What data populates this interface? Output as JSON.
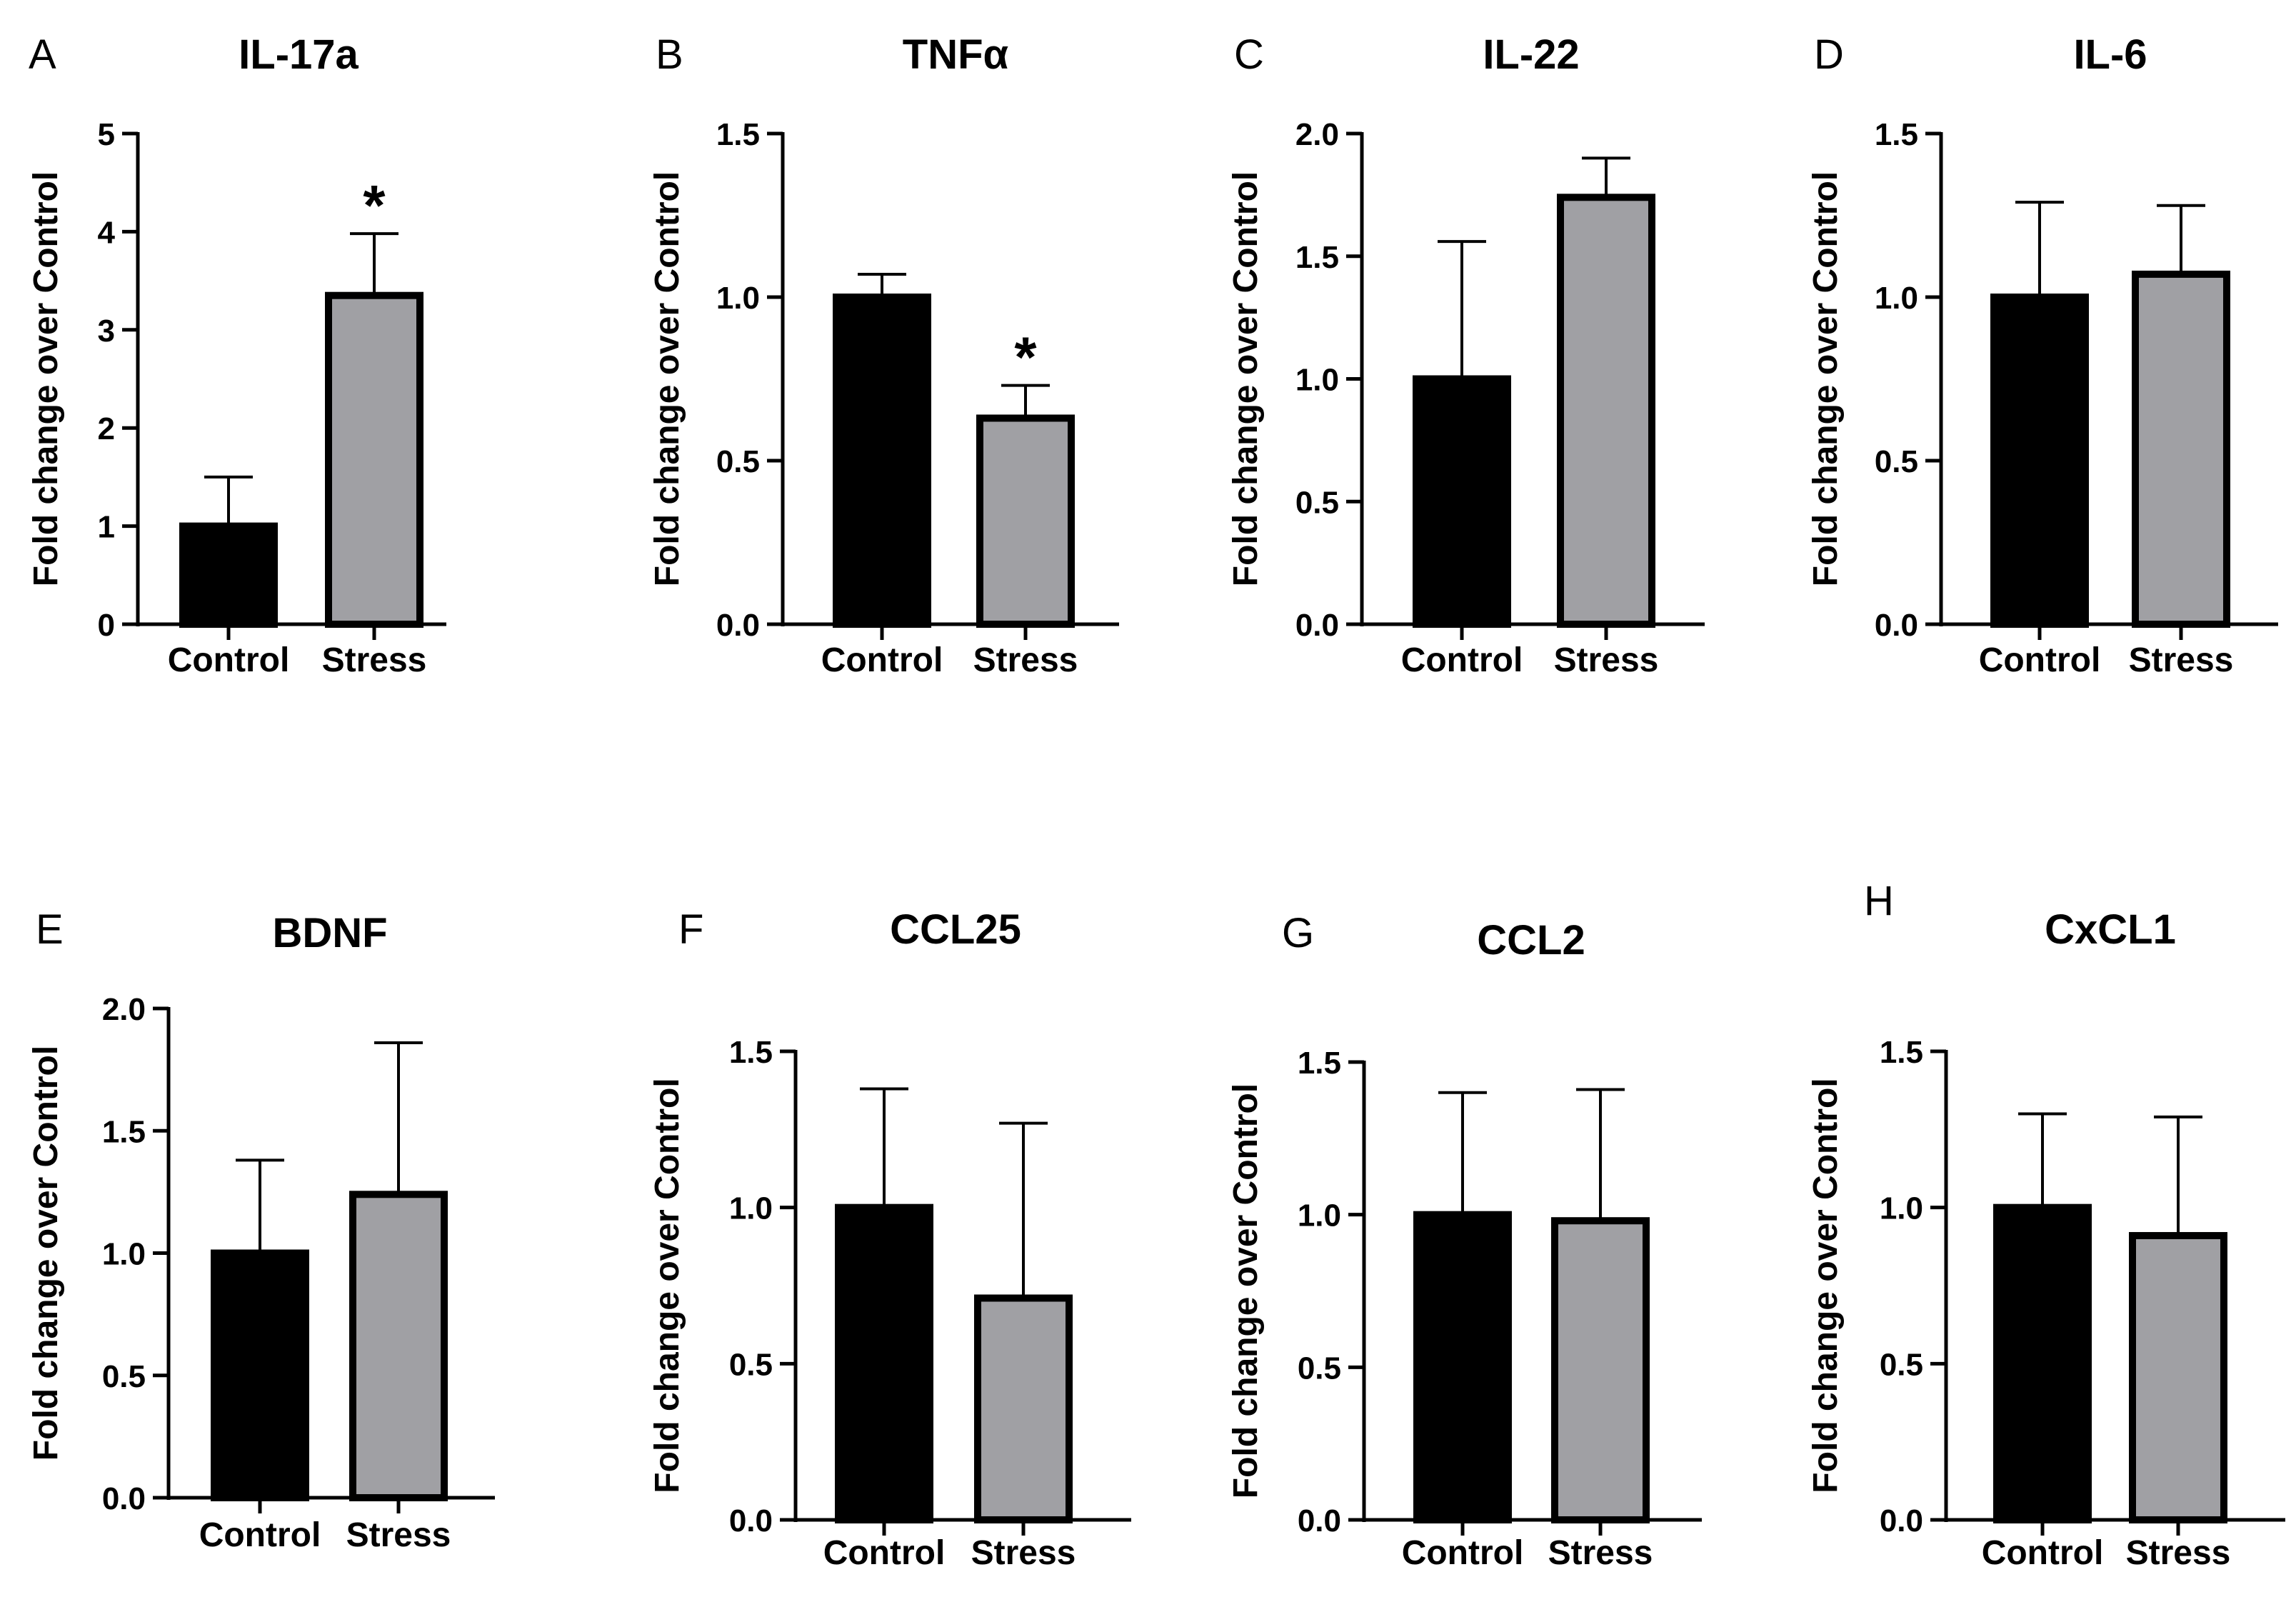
{
  "figure": {
    "description_free": true
  },
  "chart_data": [
    {
      "type": "bar",
      "panel_label": "A",
      "title": "IL-17a",
      "ylabel": "Fold change over Control",
      "xlabel": "",
      "categories": [
        "Control",
        "Stress"
      ],
      "values": [
        1.0,
        3.35
      ],
      "errors": [
        0.5,
        0.63
      ],
      "ylim": [
        0,
        5
      ],
      "yticks": [
        0,
        1,
        2,
        3,
        4,
        5
      ],
      "ytick_labels": [
        "0",
        "1",
        "2",
        "3",
        "4",
        "5"
      ],
      "annotations": [
        "",
        "*"
      ],
      "bar_colors": [
        "#000000",
        "#a0a0a4"
      ]
    },
    {
      "type": "bar",
      "panel_label": "B",
      "title": "TNFα",
      "ylabel": "Fold change over Control",
      "xlabel": "",
      "categories": [
        "Control",
        "Stress"
      ],
      "values": [
        1.0,
        0.63
      ],
      "errors": [
        0.07,
        0.1
      ],
      "ylim": [
        0,
        1.5
      ],
      "yticks": [
        0,
        0.5,
        1.0,
        1.5
      ],
      "ytick_labels": [
        "0.0",
        "0.5",
        "1.0",
        "1.5"
      ],
      "annotations": [
        "",
        "*"
      ],
      "bar_colors": [
        "#000000",
        "#a0a0a4"
      ]
    },
    {
      "type": "bar",
      "panel_label": "C",
      "title": "IL-22",
      "ylabel": "Fold change over Control",
      "xlabel": "",
      "categories": [
        "Control",
        "Stress"
      ],
      "values": [
        1.0,
        1.74
      ],
      "errors": [
        0.56,
        0.16
      ],
      "ylim": [
        0,
        2.0
      ],
      "yticks": [
        0,
        0.5,
        1.0,
        1.5,
        2.0
      ],
      "ytick_labels": [
        "0.0",
        "0.5",
        "1.0",
        "1.5",
        "2.0"
      ],
      "annotations": [
        "",
        ""
      ],
      "bar_colors": [
        "#000000",
        "#a0a0a4"
      ]
    },
    {
      "type": "bar",
      "panel_label": "D",
      "title": "IL-6",
      "ylabel": "Fold change over Control",
      "xlabel": "",
      "categories": [
        "Control",
        "Stress"
      ],
      "values": [
        1.0,
        1.07
      ],
      "errors": [
        0.29,
        0.21
      ],
      "ylim": [
        0,
        1.5
      ],
      "yticks": [
        0,
        0.5,
        1.0,
        1.5
      ],
      "ytick_labels": [
        "0.0",
        "0.5",
        "1.0",
        "1.5"
      ],
      "annotations": [
        "",
        ""
      ],
      "bar_colors": [
        "#000000",
        "#a0a0a4"
      ]
    },
    {
      "type": "bar",
      "panel_label": "E",
      "title": "BDNF",
      "ylabel": "Fold change over Control",
      "xlabel": "",
      "categories": [
        "Control",
        "Stress"
      ],
      "values": [
        1.0,
        1.24
      ],
      "errors": [
        0.38,
        0.62
      ],
      "ylim": [
        0,
        2.0
      ],
      "yticks": [
        0,
        0.5,
        1.0,
        1.5,
        2.0
      ],
      "ytick_labels": [
        "0.0",
        "0.5",
        "1.0",
        "1.5",
        "2.0"
      ],
      "annotations": [
        "",
        ""
      ],
      "bar_colors": [
        "#000000",
        "#a0a0a4"
      ]
    },
    {
      "type": "bar",
      "panel_label": "F",
      "title": "CCL25",
      "ylabel": "Fold change over Control",
      "xlabel": "",
      "categories": [
        "Control",
        "Stress"
      ],
      "values": [
        1.0,
        0.71
      ],
      "errors": [
        0.38,
        0.56
      ],
      "ylim": [
        0,
        1.5
      ],
      "yticks": [
        0,
        0.5,
        1.0,
        1.5
      ],
      "ytick_labels": [
        "0.0",
        "0.5",
        "1.0",
        "1.5"
      ],
      "annotations": [
        "",
        ""
      ],
      "bar_colors": [
        "#000000",
        "#a0a0a4"
      ]
    },
    {
      "type": "bar",
      "panel_label": "G",
      "title": "CCL2",
      "ylabel": "Fold change over Control",
      "xlabel": "",
      "categories": [
        "Control",
        "Stress"
      ],
      "values": [
        1.0,
        0.98
      ],
      "errors": [
        0.4,
        0.43
      ],
      "ylim": [
        0,
        1.5
      ],
      "yticks": [
        0,
        0.5,
        1.0,
        1.5
      ],
      "ytick_labels": [
        "0.0",
        "0.5",
        "1.0",
        "1.5"
      ],
      "annotations": [
        "",
        ""
      ],
      "bar_colors": [
        "#000000",
        "#a0a0a4"
      ]
    },
    {
      "type": "bar",
      "panel_label": "H",
      "title": "CxCL1",
      "ylabel": "Fold change over Control",
      "xlabel": "",
      "categories": [
        "Control",
        "Stress"
      ],
      "values": [
        1.0,
        0.91
      ],
      "errors": [
        0.3,
        0.38
      ],
      "ylim": [
        0,
        1.5
      ],
      "yticks": [
        0,
        0.5,
        1.0,
        1.5
      ],
      "ytick_labels": [
        "0.0",
        "0.5",
        "1.0",
        "1.5"
      ],
      "annotations": [
        "",
        ""
      ],
      "bar_colors": [
        "#000000",
        "#a0a0a4"
      ]
    }
  ]
}
